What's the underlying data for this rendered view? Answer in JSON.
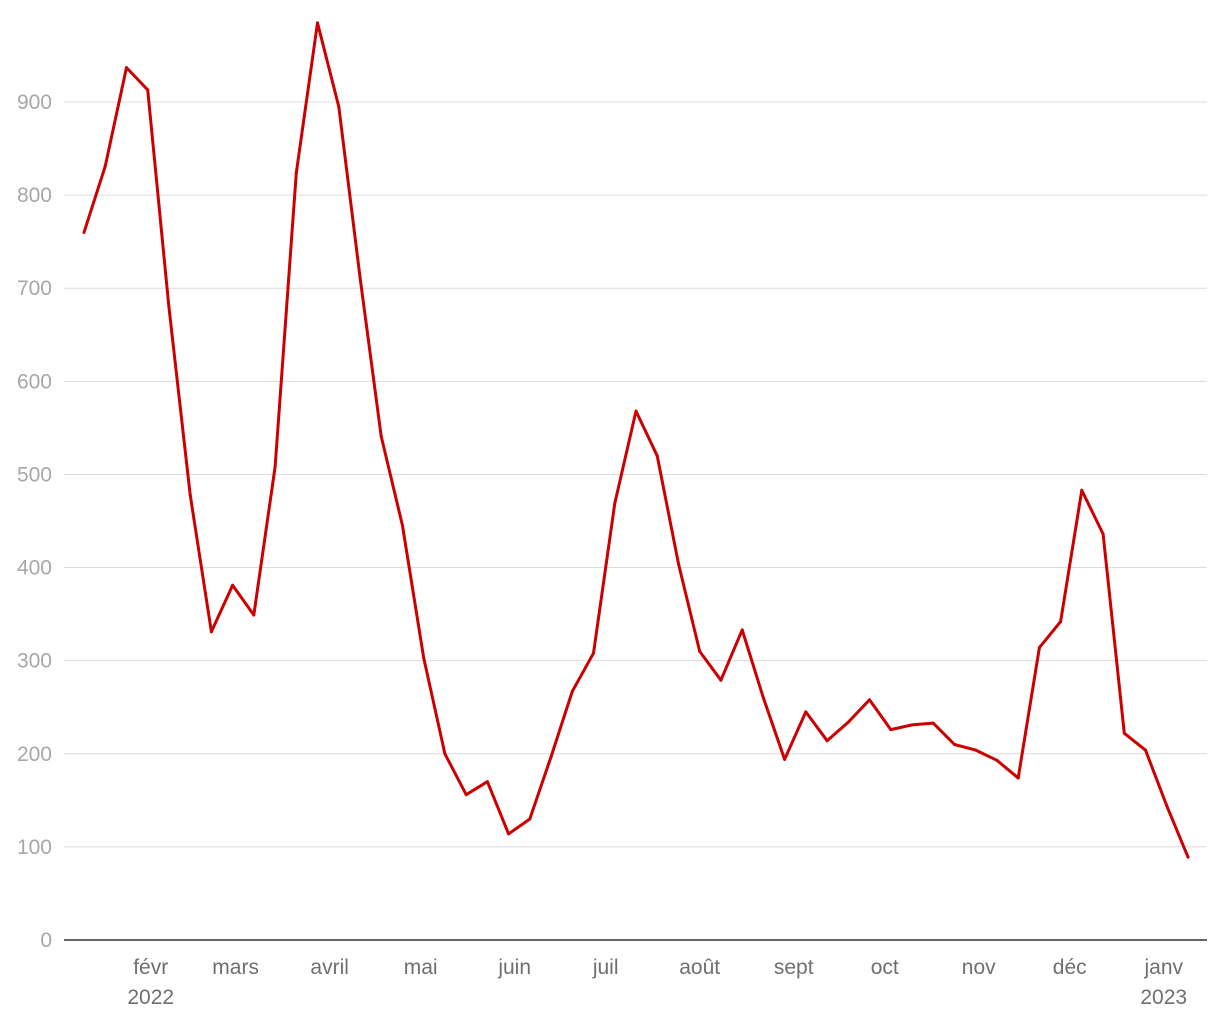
{
  "chart_data": {
    "type": "line",
    "title": "",
    "xlabel": "",
    "ylabel": "",
    "ylim": [
      0,
      1000
    ],
    "yticks": [
      0,
      100,
      200,
      300,
      400,
      500,
      600,
      700,
      800,
      900
    ],
    "grid": true,
    "legend": "none",
    "x_range": [
      "2022-01-03",
      "2023-01-30"
    ],
    "x_ticks": [
      {
        "date": "2022-02-01",
        "label": "févr",
        "sub": "2022"
      },
      {
        "date": "2022-03-01",
        "label": "mars",
        "sub": ""
      },
      {
        "date": "2022-04-01",
        "label": "avril",
        "sub": ""
      },
      {
        "date": "2022-05-01",
        "label": "mai",
        "sub": ""
      },
      {
        "date": "2022-06-01",
        "label": "juin",
        "sub": ""
      },
      {
        "date": "2022-07-01",
        "label": "juil",
        "sub": ""
      },
      {
        "date": "2022-08-01",
        "label": "août",
        "sub": ""
      },
      {
        "date": "2022-09-01",
        "label": "sept",
        "sub": ""
      },
      {
        "date": "2022-10-01",
        "label": "oct",
        "sub": ""
      },
      {
        "date": "2022-11-01",
        "label": "nov",
        "sub": ""
      },
      {
        "date": "2022-12-01",
        "label": "déc",
        "sub": ""
      },
      {
        "date": "2023-01-01",
        "label": "janv",
        "sub": "2023"
      }
    ],
    "series": [
      {
        "color": "#cc0000",
        "points": [
          [
            "2022-01-10",
            760
          ],
          [
            "2022-01-17",
            831
          ],
          [
            "2022-01-24",
            937
          ],
          [
            "2022-01-31",
            913
          ],
          [
            "2022-02-07",
            680
          ],
          [
            "2022-02-14",
            478
          ],
          [
            "2022-02-21",
            331
          ],
          [
            "2022-02-28",
            381
          ],
          [
            "2022-03-07",
            349
          ],
          [
            "2022-03-14",
            508
          ],
          [
            "2022-03-21",
            824
          ],
          [
            "2022-03-28",
            985
          ],
          [
            "2022-04-04",
            895
          ],
          [
            "2022-04-11",
            712
          ],
          [
            "2022-04-18",
            541
          ],
          [
            "2022-04-25",
            445
          ],
          [
            "2022-05-02",
            303
          ],
          [
            "2022-05-09",
            200
          ],
          [
            "2022-05-16",
            156
          ],
          [
            "2022-05-23",
            170
          ],
          [
            "2022-05-30",
            114
          ],
          [
            "2022-06-06",
            130
          ],
          [
            "2022-06-13",
            197
          ],
          [
            "2022-06-20",
            267
          ],
          [
            "2022-06-27",
            308
          ],
          [
            "2022-07-04",
            469
          ],
          [
            "2022-07-11",
            568
          ],
          [
            "2022-07-18",
            520
          ],
          [
            "2022-07-25",
            404
          ],
          [
            "2022-08-01",
            310
          ],
          [
            "2022-08-08",
            279
          ],
          [
            "2022-08-15",
            333
          ],
          [
            "2022-08-22",
            260
          ],
          [
            "2022-08-29",
            194
          ],
          [
            "2022-09-05",
            245
          ],
          [
            "2022-09-12",
            214
          ],
          [
            "2022-09-19",
            234
          ],
          [
            "2022-09-26",
            258
          ],
          [
            "2022-10-03",
            226
          ],
          [
            "2022-10-10",
            231
          ],
          [
            "2022-10-17",
            233
          ],
          [
            "2022-10-24",
            210
          ],
          [
            "2022-10-31",
            204
          ],
          [
            "2022-11-07",
            193
          ],
          [
            "2022-11-14",
            174
          ],
          [
            "2022-11-21",
            314
          ],
          [
            "2022-11-28",
            342
          ],
          [
            "2022-12-05",
            483
          ],
          [
            "2022-12-12",
            436
          ],
          [
            "2022-12-19",
            222
          ],
          [
            "2022-12-26",
            204
          ],
          [
            "2023-01-02",
            144
          ],
          [
            "2023-01-09",
            89
          ]
        ]
      }
    ]
  }
}
